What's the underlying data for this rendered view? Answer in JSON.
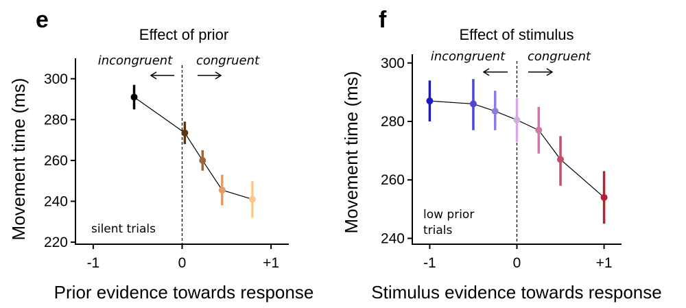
{
  "chart_data": [
    {
      "panel_letter": "e",
      "type": "line",
      "title": "Effect of prior",
      "xlabel": "Prior evidence towards response",
      "ylabel": "Movement time (ms)",
      "xlim": [
        -1.2,
        1.2
      ],
      "ylim": [
        219,
        310
      ],
      "xticks": [
        -1,
        0,
        1
      ],
      "xtick_labels": [
        "-1",
        "0",
        "+1"
      ],
      "yticks": [
        220,
        240,
        260,
        280,
        300
      ],
      "ytick_labels": [
        "220",
        "240",
        "260",
        "280",
        "300"
      ],
      "annotation_left": "incongruent",
      "annotation_right": "congruent",
      "corner_note": "silent trials",
      "points": [
        {
          "x": -0.54,
          "y": 291,
          "low": 285,
          "high": 297,
          "color": "#000000"
        },
        {
          "x": 0.03,
          "y": 273.5,
          "low": 268,
          "high": 279,
          "color": "#5b3613"
        },
        {
          "x": 0.23,
          "y": 260,
          "low": 255,
          "high": 265,
          "color": "#9c673c"
        },
        {
          "x": 0.45,
          "y": 245.5,
          "low": 238,
          "high": 253,
          "color": "#e39d64"
        },
        {
          "x": 0.79,
          "y": 241,
          "low": 232,
          "high": 250,
          "color": "#fbc987"
        }
      ]
    },
    {
      "panel_letter": "f",
      "type": "line",
      "title": "Effect of stimulus",
      "xlabel": "Stimulus evidence towards response",
      "ylabel": "Movement time (ms)",
      "xlim": [
        -1.2,
        1.2
      ],
      "ylim": [
        238,
        303
      ],
      "xticks": [
        -1,
        0,
        1
      ],
      "xtick_labels": [
        "-1",
        "0",
        "+1"
      ],
      "yticks": [
        240,
        260,
        280,
        300
      ],
      "ytick_labels": [
        "240",
        "260",
        "280",
        "300"
      ],
      "annotation_left": "incongruent",
      "annotation_right": "congruent",
      "corner_note": [
        "low prior",
        "trials"
      ],
      "points": [
        {
          "x": -1.0,
          "y": 287,
          "low": 280,
          "high": 294,
          "color": "#1c1ac6"
        },
        {
          "x": -0.5,
          "y": 286,
          "low": 277,
          "high": 294.5,
          "color": "#4f46d8"
        },
        {
          "x": -0.25,
          "y": 283.5,
          "low": 277,
          "high": 290.5,
          "color": "#8a7ee2"
        },
        {
          "x": 0.0,
          "y": 280.5,
          "low": 273,
          "high": 288,
          "color": "#d8a8e4"
        },
        {
          "x": 0.25,
          "y": 277,
          "low": 269,
          "high": 285,
          "color": "#cd7aa8"
        },
        {
          "x": 0.5,
          "y": 267,
          "low": 258,
          "high": 275,
          "color": "#c04e6c"
        },
        {
          "x": 1.0,
          "y": 254,
          "low": 245,
          "high": 263,
          "color": "#b22434"
        }
      ]
    }
  ]
}
